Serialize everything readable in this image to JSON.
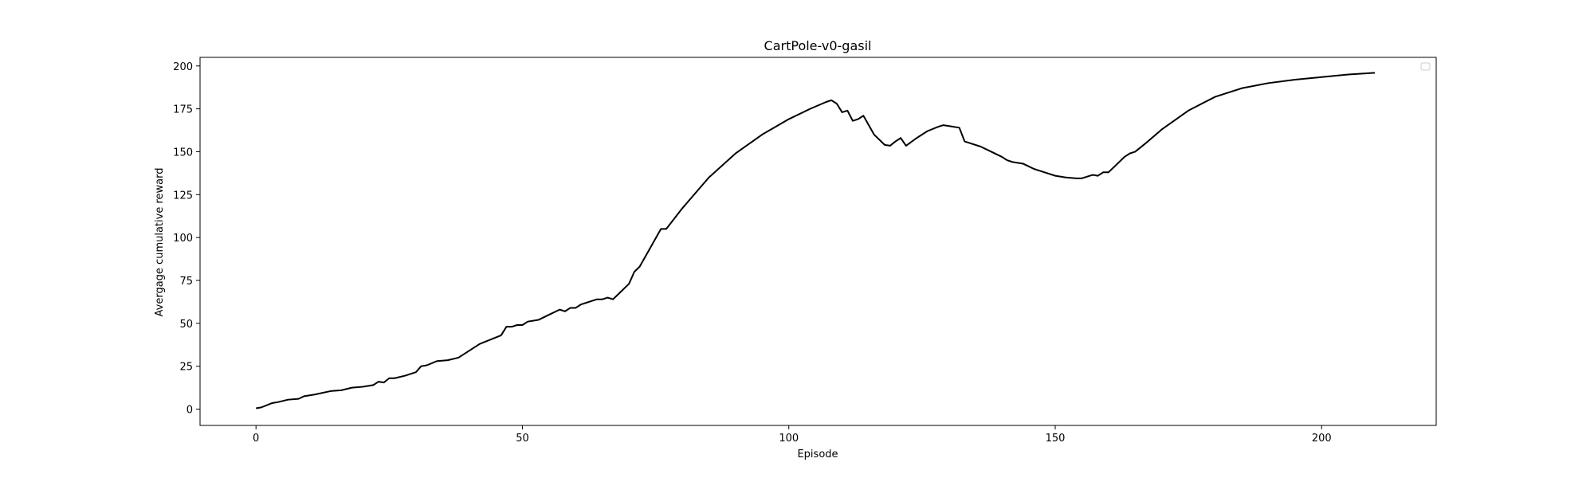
{
  "chart_data": {
    "type": "line",
    "title": "CartPole-v0-gasil",
    "xlabel": "Episode",
    "ylabel": "Avergage cumulative reward",
    "xlim": [
      -10.5,
      221.5
    ],
    "ylim": [
      -9.5,
      205
    ],
    "xticks": [
      0,
      50,
      100,
      150,
      200
    ],
    "yticks": [
      0,
      25,
      50,
      75,
      100,
      125,
      150,
      175,
      200
    ],
    "grid": false,
    "legend": {
      "placement": "top-right",
      "entries": []
    },
    "series": [
      {
        "color": "#000000",
        "x": [
          0,
          1,
          3,
          4,
          6,
          8,
          9,
          11,
          14,
          16,
          18,
          20,
          22,
          23,
          24,
          25,
          26,
          28,
          30,
          31,
          32,
          34,
          36,
          38,
          40,
          42,
          44,
          46,
          47,
          48,
          49,
          50,
          51,
          53,
          55,
          57,
          58,
          59,
          60,
          61,
          62,
          63,
          64,
          65,
          66,
          67,
          68,
          70,
          71,
          72,
          74,
          76,
          77,
          80,
          85,
          90,
          95,
          100,
          104,
          107,
          108,
          109,
          110,
          111,
          112,
          113,
          114,
          116,
          118,
          119,
          120,
          121,
          122,
          124,
          126,
          128,
          129,
          130,
          132,
          133,
          134,
          136,
          138,
          140,
          141,
          142,
          144,
          146,
          147,
          148,
          150,
          152,
          154,
          155,
          156,
          157,
          158,
          159,
          160,
          161,
          162,
          163,
          164,
          165,
          167,
          170,
          175,
          180,
          185,
          190,
          195,
          200,
          205,
          210
        ],
        "y": [
          0.5,
          1,
          3.5,
          4,
          5.5,
          6,
          7.5,
          8.5,
          10.5,
          11,
          12.5,
          13,
          14,
          16,
          15.5,
          18,
          18,
          19.5,
          21.5,
          25,
          25.5,
          28,
          28.5,
          30,
          34,
          38,
          40.5,
          43,
          48,
          48,
          49,
          49,
          51,
          52,
          55,
          58,
          57,
          59,
          59,
          61,
          62,
          63,
          64,
          64,
          65,
          64,
          67,
          73,
          80,
          83,
          94,
          105,
          105,
          117,
          135,
          149,
          160,
          169,
          175,
          179,
          180,
          178,
          173,
          174,
          168,
          169,
          171,
          160,
          154,
          153.5,
          156,
          158,
          153.5,
          158,
          162,
          164.5,
          165.5,
          165,
          164,
          156,
          155,
          153,
          150,
          147,
          145,
          144,
          143,
          140,
          139,
          138,
          136,
          135,
          134.5,
          134.5,
          135.5,
          136.5,
          136,
          138,
          138,
          141,
          144,
          147,
          149,
          150,
          155,
          163,
          174,
          182,
          187,
          190,
          192,
          193.5,
          195,
          196
        ]
      }
    ]
  }
}
